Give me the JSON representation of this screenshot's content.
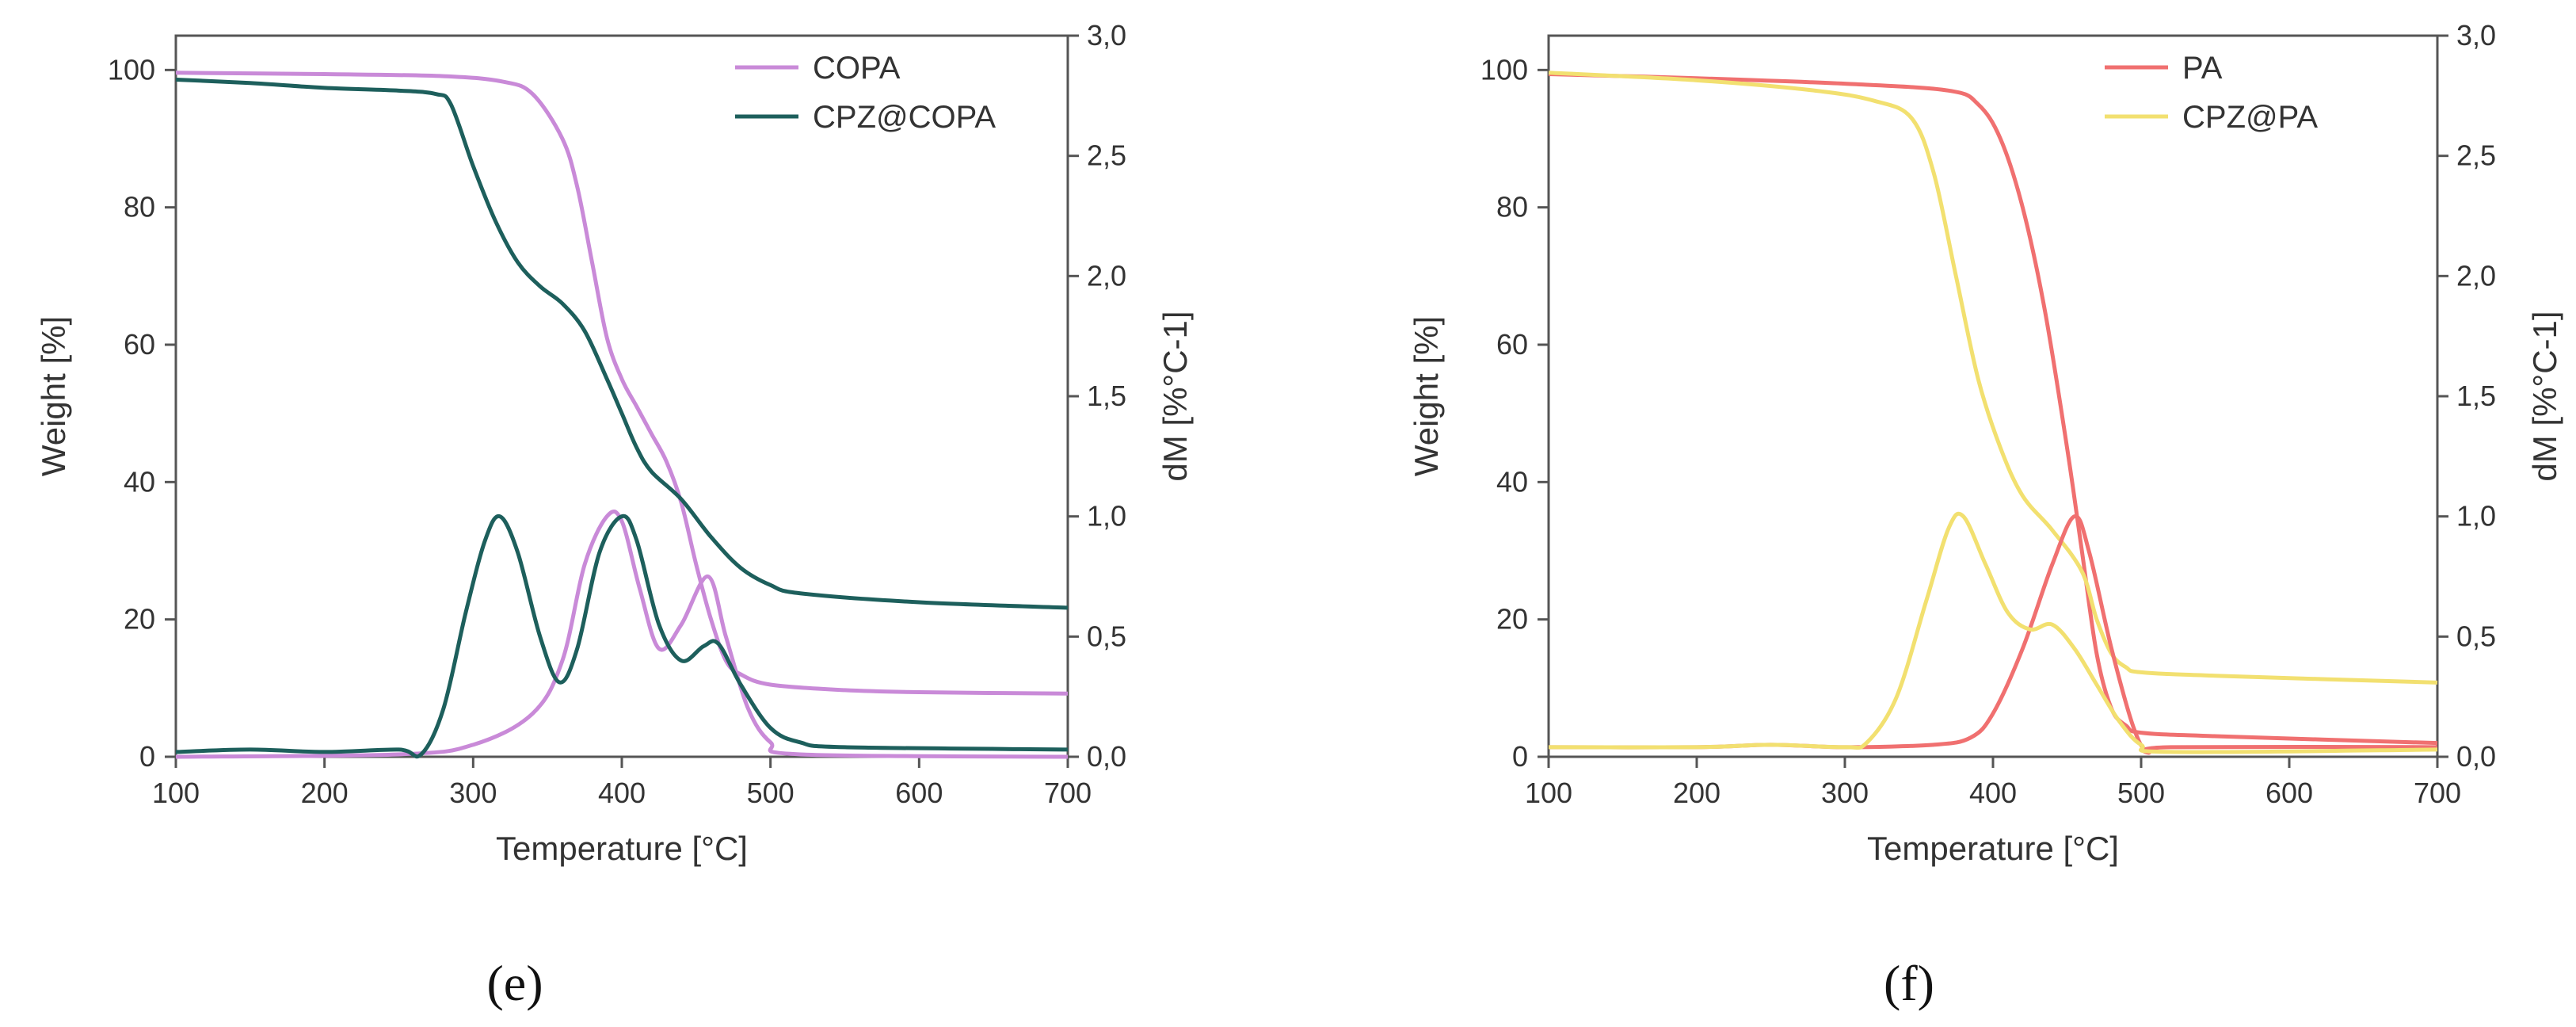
{
  "chart_data": [
    {
      "panel": "(e)",
      "type": "line",
      "xlabel": "Temperature [°C]",
      "ylabel": "Weight [%]",
      "y2label": "dM [%°C-1]",
      "xlim": [
        100,
        700
      ],
      "ylim": [
        0,
        105
      ],
      "y2lim": [
        0,
        3.0
      ],
      "x_ticks": [
        100,
        200,
        300,
        400,
        500,
        600,
        700
      ],
      "y_ticks": [
        0,
        20,
        40,
        60,
        80,
        100
      ],
      "y2_ticks": [
        "0,0",
        "0,5",
        "1,0",
        "1,5",
        "2,0",
        "2,5",
        "3,0"
      ],
      "y2_tick_values": [
        0,
        0.5,
        1.0,
        1.5,
        2.0,
        2.5,
        3.0
      ],
      "legend_position": "top-right",
      "series": [
        {
          "name": "COPA",
          "color": "#c98ad8",
          "axis": "y",
          "legend": true,
          "points": [
            [
              100,
              99.6
            ],
            [
              200,
              99.4
            ],
            [
              280,
              99.1
            ],
            [
              320,
              98.3
            ],
            [
              340,
              96.5
            ],
            [
              360,
              90
            ],
            [
              370,
              83
            ],
            [
              380,
              72
            ],
            [
              390,
              61
            ],
            [
              400,
              55
            ],
            [
              410,
              51
            ],
            [
              420,
              47
            ],
            [
              430,
              43
            ],
            [
              440,
              37
            ],
            [
              450,
              28
            ],
            [
              460,
              20
            ],
            [
              470,
              14
            ],
            [
              480,
              12
            ],
            [
              500,
              10.5
            ],
            [
              550,
              9.7
            ],
            [
              600,
              9.4
            ],
            [
              700,
              9.2
            ]
          ]
        },
        {
          "name": "CPZ@COPA",
          "color": "#1d5f5c",
          "axis": "y",
          "legend": true,
          "points": [
            [
              100,
              98.6
            ],
            [
              150,
              98.1
            ],
            [
              200,
              97.4
            ],
            [
              250,
              97
            ],
            [
              275,
              96.5
            ],
            [
              285,
              95
            ],
            [
              300,
              86
            ],
            [
              315,
              78
            ],
            [
              330,
              72
            ],
            [
              345,
              68.5
            ],
            [
              360,
              66
            ],
            [
              375,
              62
            ],
            [
              390,
              55
            ],
            [
              400,
              50
            ],
            [
              410,
              45
            ],
            [
              420,
              41.5
            ],
            [
              440,
              37.5
            ],
            [
              460,
              32
            ],
            [
              480,
              27.5
            ],
            [
              500,
              25
            ],
            [
              520,
              23.8
            ],
            [
              600,
              22.5
            ],
            [
              700,
              21.7
            ]
          ]
        },
        {
          "name": "COPA dM",
          "color": "#c98ad8",
          "axis": "y2",
          "legend": false,
          "points": [
            [
              100,
              0
            ],
            [
              250,
              0.01
            ],
            [
              300,
              0.05
            ],
            [
              340,
              0.18
            ],
            [
              360,
              0.4
            ],
            [
              375,
              0.8
            ],
            [
              390,
              1.0
            ],
            [
              400,
              0.98
            ],
            [
              412,
              0.7
            ],
            [
              425,
              0.45
            ],
            [
              440,
              0.55
            ],
            [
              458,
              0.75
            ],
            [
              470,
              0.5
            ],
            [
              485,
              0.2
            ],
            [
              500,
              0.06
            ],
            [
              520,
              0.01
            ],
            [
              700,
              0
            ]
          ]
        },
        {
          "name": "CPZ@COPA dM",
          "color": "#1d5f5c",
          "axis": "y2",
          "legend": false,
          "points": [
            [
              100,
              0.02
            ],
            [
              150,
              0.03
            ],
            [
              200,
              0.02
            ],
            [
              250,
              0.03
            ],
            [
              265,
              0.01
            ],
            [
              280,
              0.2
            ],
            [
              295,
              0.6
            ],
            [
              308,
              0.9
            ],
            [
              318,
              1.0
            ],
            [
              330,
              0.85
            ],
            [
              345,
              0.5
            ],
            [
              358,
              0.31
            ],
            [
              370,
              0.45
            ],
            [
              385,
              0.85
            ],
            [
              400,
              1.0
            ],
            [
              410,
              0.9
            ],
            [
              425,
              0.55
            ],
            [
              440,
              0.4
            ],
            [
              455,
              0.46
            ],
            [
              465,
              0.47
            ],
            [
              480,
              0.3
            ],
            [
              500,
              0.12
            ],
            [
              520,
              0.06
            ],
            [
              550,
              0.04
            ],
            [
              700,
              0.03
            ]
          ]
        }
      ]
    },
    {
      "panel": "(f)",
      "type": "line",
      "xlabel": "Temperature [°C]",
      "ylabel": "Weight [%]",
      "y2label": "dM [%°C-1]",
      "xlim": [
        100,
        700
      ],
      "ylim": [
        0,
        105
      ],
      "y2lim": [
        0,
        3.0
      ],
      "x_ticks": [
        100,
        200,
        300,
        400,
        500,
        600,
        700
      ],
      "y_ticks": [
        0,
        20,
        40,
        60,
        80,
        100
      ],
      "y2_ticks": [
        "0,0",
        "0,5",
        "1,0",
        "1,5",
        "2,0",
        "2,5",
        "3,0"
      ],
      "y2_tick_values": [
        0,
        0.5,
        1.0,
        1.5,
        2.0,
        2.5,
        3.0
      ],
      "legend_position": "top-right",
      "series": [
        {
          "name": "PA",
          "color": "#f07070",
          "axis": "y",
          "legend": true,
          "points": [
            [
              100,
              99.4
            ],
            [
              200,
              98.8
            ],
            [
              300,
              98
            ],
            [
              370,
              97
            ],
            [
              390,
              95
            ],
            [
              405,
              90
            ],
            [
              420,
              80
            ],
            [
              435,
              65
            ],
            [
              450,
              45
            ],
            [
              460,
              30
            ],
            [
              470,
              15
            ],
            [
              480,
              7
            ],
            [
              490,
              4.5
            ],
            [
              500,
              3.5
            ],
            [
              550,
              3
            ],
            [
              700,
              2
            ]
          ]
        },
        {
          "name": "CPZ@PA",
          "color": "#f2e070",
          "axis": "y",
          "legend": true,
          "points": [
            [
              100,
              99.6
            ],
            [
              200,
              98.5
            ],
            [
              280,
              97
            ],
            [
              320,
              95.5
            ],
            [
              345,
              93
            ],
            [
              360,
              85
            ],
            [
              375,
              70
            ],
            [
              390,
              55
            ],
            [
              405,
              45
            ],
            [
              420,
              38
            ],
            [
              440,
              33
            ],
            [
              460,
              27
            ],
            [
              470,
              20
            ],
            [
              480,
              15
            ],
            [
              490,
              13
            ],
            [
              500,
              12.3
            ],
            [
              550,
              11.8
            ],
            [
              700,
              10.8
            ]
          ]
        },
        {
          "name": "PA dM",
          "color": "#f07070",
          "axis": "y2",
          "legend": false,
          "points": [
            [
              100,
              0.04
            ],
            [
              200,
              0.04
            ],
            [
              250,
              0.05
            ],
            [
              300,
              0.04
            ],
            [
              360,
              0.05
            ],
            [
              385,
              0.08
            ],
            [
              400,
              0.18
            ],
            [
              420,
              0.45
            ],
            [
              440,
              0.8
            ],
            [
              455,
              1.0
            ],
            [
              465,
              0.85
            ],
            [
              480,
              0.45
            ],
            [
              495,
              0.12
            ],
            [
              505,
              0.02
            ],
            [
              520,
              0.04
            ],
            [
              700,
              0.04
            ]
          ]
        },
        {
          "name": "CPZ@PA dM",
          "color": "#f2e070",
          "axis": "y2",
          "legend": false,
          "points": [
            [
              100,
              0.04
            ],
            [
              200,
              0.04
            ],
            [
              250,
              0.05
            ],
            [
              300,
              0.04
            ],
            [
              315,
              0.06
            ],
            [
              335,
              0.25
            ],
            [
              355,
              0.65
            ],
            [
              370,
              0.95
            ],
            [
              380,
              1.0
            ],
            [
              395,
              0.8
            ],
            [
              410,
              0.6
            ],
            [
              425,
              0.53
            ],
            [
              440,
              0.55
            ],
            [
              455,
              0.45
            ],
            [
              470,
              0.3
            ],
            [
              485,
              0.15
            ],
            [
              500,
              0.05
            ],
            [
              520,
              0.02
            ],
            [
              700,
              0.03
            ]
          ]
        }
      ]
    }
  ],
  "captions": {
    "e": "(e)",
    "f": "(f)"
  }
}
